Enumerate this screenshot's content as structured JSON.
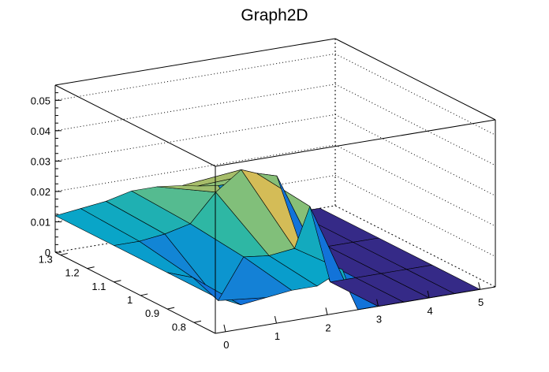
{
  "chart_data": {
    "type": "surface",
    "title": "Graph2D",
    "xlabel": "",
    "ylabel": "",
    "zlabel": "",
    "x_range": [
      -0.2,
      5.3
    ],
    "y_range": [
      0.72,
      1.32
    ],
    "z_range": [
      0,
      0.055
    ],
    "x_ticks": [
      "0",
      "1",
      "2",
      "3",
      "4",
      "5"
    ],
    "y_ticks": [
      "0.8",
      "0.9",
      "1",
      "1.1",
      "1.2",
      "1.3"
    ],
    "z_ticks": [
      "0",
      "0.01",
      "0.02",
      "0.03",
      "0.04",
      "0.05"
    ],
    "grid": true,
    "palette": [
      "#352a87",
      "#0f5cdd",
      "#1481d6",
      "#06a4ca",
      "#2eb7a4",
      "#87bf77",
      "#d1bb59",
      "#fec832",
      "#f9fb0e"
    ],
    "x_grid": [
      -0.2,
      0.3,
      0.8,
      1.3,
      1.8,
      2.3,
      2.6,
      3.0,
      3.5,
      4.0,
      4.5,
      5.0
    ],
    "y_grid": [
      0.72,
      0.9,
      1.1,
      1.32
    ],
    "z_values": [
      [
        0.012,
        0.008,
        0.009,
        0.01,
        0.01,
        0.014,
        0.0,
        0.0,
        0.0,
        0.0,
        0.0,
        0.0
      ],
      [
        0.012,
        0.009,
        0.0,
        0.013,
        0.012,
        0.013,
        0.026,
        0.0,
        0.0,
        0.0,
        0.0,
        0.0
      ],
      [
        0.012,
        0.012,
        0.013,
        0.015,
        0.024,
        0.03,
        0.028,
        0.026,
        0.0,
        0.0,
        0.0,
        0.0
      ],
      [
        0.012,
        0.013,
        0.014,
        0.016,
        0.016,
        0.015,
        0.014,
        0.013,
        0.0,
        0.0,
        0.0,
        0.0
      ]
    ]
  }
}
